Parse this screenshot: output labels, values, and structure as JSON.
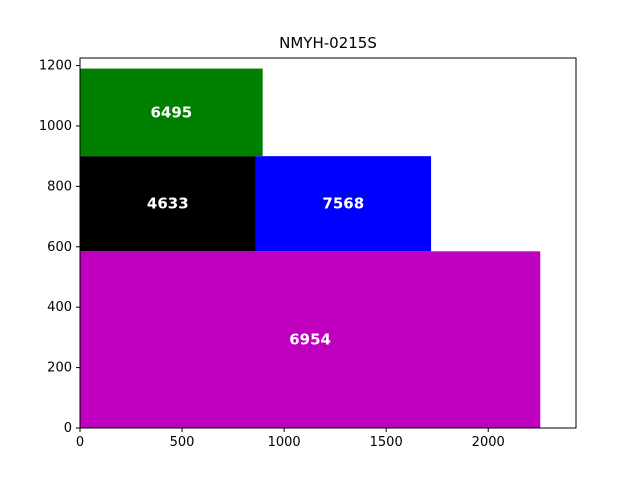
{
  "chart_data": {
    "type": "bar",
    "title": "NMYH-0215S",
    "xlabel": "",
    "ylabel": "",
    "xlim": [
      0,
      2430
    ],
    "ylim": [
      0,
      1225
    ],
    "xticks": [
      0,
      500,
      1000,
      1500,
      2000
    ],
    "yticks": [
      0,
      200,
      400,
      600,
      800,
      1000,
      1200
    ],
    "grid": false,
    "blocks": [
      {
        "label": "6954",
        "x0": 0,
        "x1": 2255,
        "y0": 0,
        "y1": 585,
        "color": "#bf00bf"
      },
      {
        "label": "4633",
        "x0": 0,
        "x1": 860,
        "y0": 585,
        "y1": 900,
        "color": "#000000"
      },
      {
        "label": "7568",
        "x0": 860,
        "x1": 1720,
        "y0": 585,
        "y1": 900,
        "color": "#0000ff"
      },
      {
        "label": "6495",
        "x0": 0,
        "x1": 895,
        "y0": 900,
        "y1": 1190,
        "color": "#008000"
      }
    ]
  }
}
